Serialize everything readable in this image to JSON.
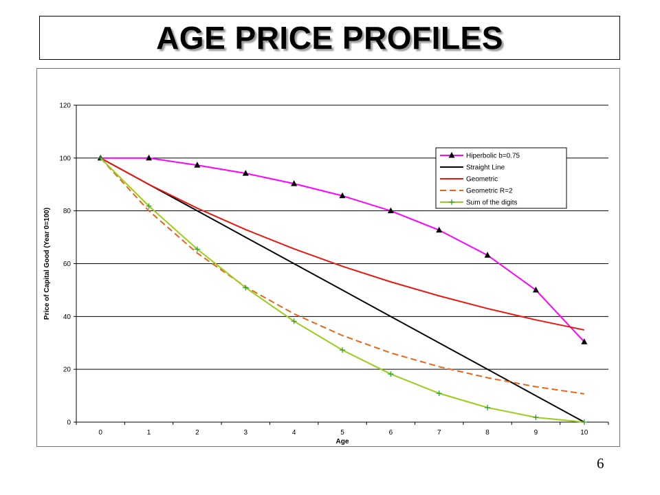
{
  "slide": {
    "title": "AGE PRICE PROFILES",
    "page_number": "6"
  },
  "chart_data": {
    "type": "line",
    "xlabel": "Age",
    "ylabel": "Price of Capital Good (Year 0=100)",
    "x": [
      0,
      1,
      2,
      3,
      4,
      5,
      6,
      7,
      8,
      9,
      10
    ],
    "ylim": [
      0,
      120
    ],
    "yticks": [
      0,
      20,
      40,
      60,
      80,
      100,
      120
    ],
    "grid": "horizontal",
    "legend_position": "top-right",
    "series": [
      {
        "name": "Hiperbolic b=0.75",
        "color": "#ff00ff",
        "marker": "triangle",
        "dash": "solid",
        "values": [
          100,
          100,
          97.3,
          94.2,
          90.3,
          85.7,
          80,
          72.7,
          63.2,
          50,
          30.4
        ]
      },
      {
        "name": "Straight Line",
        "color": "#000000",
        "marker": "none",
        "dash": "solid",
        "values": [
          100,
          90,
          80,
          70,
          60,
          50,
          40,
          30,
          20,
          10,
          0
        ]
      },
      {
        "name": "Geometric",
        "color": "#e8170f",
        "marker": "none",
        "dash": "solid",
        "values": [
          100,
          90,
          81,
          72.9,
          65.6,
          59,
          53.1,
          47.8,
          43,
          38.7,
          34.9
        ]
      },
      {
        "name": "Geometric R=2",
        "color": "#e8651a",
        "marker": "none",
        "dash": "dashed",
        "values": [
          100,
          80,
          64,
          51.2,
          41,
          32.8,
          26.2,
          21,
          16.8,
          13.4,
          10.7
        ]
      },
      {
        "name": "Sum of the digits",
        "color": "#9acd1a",
        "marker": "plus",
        "dash": "solid",
        "values": [
          100,
          81.8,
          65.5,
          50.9,
          38.2,
          27.3,
          18.2,
          10.9,
          5.5,
          1.8,
          0
        ]
      }
    ]
  }
}
